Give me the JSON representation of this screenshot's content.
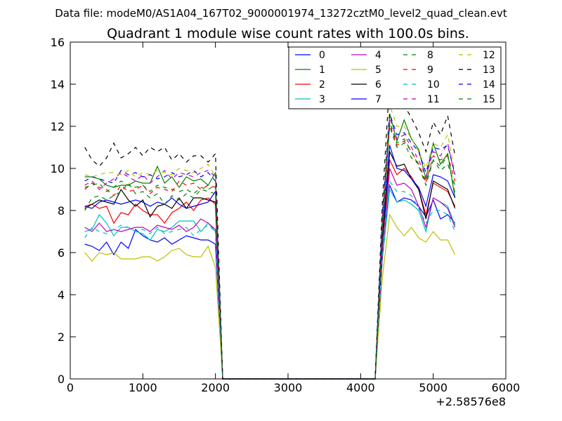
{
  "header": {
    "data_file_label": "Data file: modeM0/AS1A04_167T02_9000001974_13272cztM0_level2_quad_clean.evt"
  },
  "chart_data": {
    "type": "line",
    "title": "Quadrant 1 module wise count rates with 100.0s bins.",
    "xlabel": "",
    "ylabel": "",
    "x_offset_label": "+2.58576e8",
    "xlim": [
      0,
      6000
    ],
    "ylim": [
      0,
      16
    ],
    "x_ticks": [
      0,
      1000,
      2000,
      3000,
      4000,
      5000,
      6000
    ],
    "y_ticks": [
      0,
      2,
      4,
      6,
      8,
      10,
      12,
      14,
      16
    ],
    "grid": false,
    "legend_position": "top-right",
    "x": [
      200,
      300,
      400,
      500,
      600,
      700,
      800,
      900,
      1000,
      1100,
      1200,
      1300,
      1400,
      1500,
      1600,
      1700,
      1800,
      1900,
      2000,
      2100,
      2200,
      2300,
      2400,
      2500,
      2600,
      2700,
      2800,
      2900,
      3000,
      3100,
      3200,
      3300,
      3400,
      3500,
      3600,
      3700,
      3800,
      3900,
      4000,
      4100,
      4200,
      4300,
      4400,
      4500,
      4600,
      4700,
      4800,
      4900,
      5000,
      5100,
      5200,
      5300
    ],
    "series": [
      {
        "name": "0",
        "color": "#0000ff",
        "dash": "solid",
        "values": [
          6.4,
          6.3,
          6.1,
          6.5,
          5.9,
          6.5,
          6.2,
          7.1,
          6.8,
          6.6,
          6.5,
          6.7,
          6.4,
          6.6,
          6.8,
          6.7,
          6.6,
          6.6,
          6.4,
          0,
          0,
          0,
          0,
          0,
          0,
          0,
          0,
          0,
          0,
          0,
          0,
          0,
          0,
          0,
          0,
          0,
          0,
          0,
          0,
          0,
          0,
          5.8,
          9.2,
          8.4,
          8.6,
          8.5,
          8.2,
          7.7,
          8.5,
          7.6,
          7.8,
          7.4
        ]
      },
      {
        "name": "1",
        "color": "#008000",
        "dash": "solid",
        "values": [
          9.6,
          9.6,
          9.5,
          9.2,
          9.1,
          9.2,
          9.2,
          9.4,
          9.3,
          9.3,
          10.1,
          9.3,
          9.6,
          9.1,
          9.6,
          9.4,
          9.5,
          9.2,
          9.8,
          0,
          0,
          0,
          0,
          0,
          0,
          0,
          0,
          0,
          0,
          0,
          0,
          0,
          0,
          0,
          0,
          0,
          0,
          0,
          0,
          0,
          0,
          7.5,
          12.6,
          11.3,
          12.3,
          11.4,
          10.9,
          9.5,
          11.2,
          10.2,
          10.7,
          8.6
        ]
      },
      {
        "name": "2",
        "color": "#ff0000",
        "dash": "solid",
        "values": [
          8.2,
          8.3,
          8.1,
          8.2,
          7.4,
          7.9,
          7.8,
          8.3,
          8.0,
          7.8,
          7.8,
          7.4,
          7.9,
          8.1,
          8.4,
          8.0,
          8.5,
          8.6,
          8.3,
          0,
          0,
          0,
          0,
          0,
          0,
          0,
          0,
          0,
          0,
          0,
          0,
          0,
          0,
          0,
          0,
          0,
          0,
          0,
          0,
          0,
          0,
          6.4,
          10.4,
          9.7,
          10.0,
          9.6,
          9.0,
          7.8,
          9.3,
          9.1,
          8.9,
          8.2
        ]
      },
      {
        "name": "3",
        "color": "#00bfbf",
        "dash": "solid",
        "values": [
          7.0,
          7.1,
          7.8,
          7.4,
          6.8,
          7.2,
          7.2,
          7.0,
          6.9,
          6.6,
          7.1,
          7.0,
          7.2,
          7.5,
          7.5,
          7.5,
          7.0,
          7.4,
          7.0,
          0,
          0,
          0,
          0,
          0,
          0,
          0,
          0,
          0,
          0,
          0,
          0,
          0,
          0,
          0,
          0,
          0,
          0,
          0,
          0,
          0,
          0,
          5.7,
          9.0,
          8.4,
          8.5,
          8.3,
          8.0,
          7.0,
          8.6,
          8.4,
          8.2,
          7.3
        ]
      },
      {
        "name": "4",
        "color": "#bf00bf",
        "dash": "solid",
        "values": [
          7.2,
          7.0,
          7.4,
          7.0,
          7.1,
          7.0,
          7.1,
          7.2,
          7.2,
          7.0,
          7.3,
          7.2,
          7.1,
          7.3,
          7.0,
          7.2,
          7.6,
          7.4,
          7.1,
          0,
          0,
          0,
          0,
          0,
          0,
          0,
          0,
          0,
          0,
          0,
          0,
          0,
          0,
          0,
          0,
          0,
          0,
          0,
          0,
          0,
          0,
          5.8,
          10.0,
          9.2,
          9.3,
          9.0,
          8.2,
          7.2,
          8.6,
          8.4,
          8.1,
          7.2
        ]
      },
      {
        "name": "5",
        "color": "#bfbf00",
        "dash": "solid",
        "values": [
          6.0,
          5.6,
          6.0,
          5.9,
          6.0,
          5.7,
          5.7,
          5.7,
          5.8,
          5.8,
          5.6,
          5.8,
          6.1,
          6.2,
          5.9,
          5.8,
          5.8,
          6.3,
          5.3,
          0,
          0,
          0,
          0,
          0,
          0,
          0,
          0,
          0,
          0,
          0,
          0,
          0,
          0,
          0,
          0,
          0,
          0,
          0,
          0,
          0,
          0,
          4.8,
          7.8,
          7.2,
          6.8,
          7.2,
          6.7,
          6.5,
          7.0,
          6.6,
          6.6,
          5.9
        ]
      },
      {
        "name": "6",
        "color": "#000000",
        "dash": "solid",
        "values": [
          8.1,
          8.3,
          8.5,
          8.4,
          8.3,
          9.0,
          8.5,
          8.2,
          8.5,
          7.7,
          8.2,
          8.3,
          8.1,
          8.6,
          8.1,
          8.6,
          8.6,
          8.5,
          8.4,
          0,
          0,
          0,
          0,
          0,
          0,
          0,
          0,
          0,
          0,
          0,
          0,
          0,
          0,
          0,
          0,
          0,
          0,
          0,
          0,
          0,
          0,
          6.5,
          10.8,
          10.1,
          10.2,
          9.5,
          9.0,
          7.6,
          9.4,
          9.2,
          9.0,
          8.1
        ]
      },
      {
        "name": "7",
        "color": "#0000ff",
        "dash": "solid",
        "values": [
          8.2,
          8.1,
          8.4,
          8.5,
          8.4,
          8.3,
          8.4,
          8.5,
          8.4,
          8.2,
          8.4,
          8.3,
          8.6,
          8.3,
          8.1,
          8.2,
          8.3,
          8.4,
          8.9,
          0,
          0,
          0,
          0,
          0,
          0,
          0,
          0,
          0,
          0,
          0,
          0,
          0,
          0,
          0,
          0,
          0,
          0,
          0,
          0,
          0,
          0,
          6.8,
          11.1,
          10.0,
          9.9,
          9.5,
          9.1,
          8.2,
          9.7,
          9.6,
          9.4,
          8.6
        ]
      },
      {
        "name": "8",
        "color": "#008000",
        "dash": "dashed",
        "values": [
          8.0,
          8.6,
          8.7,
          8.5,
          8.7,
          8.9,
          9.3,
          8.8,
          8.9,
          8.6,
          8.8,
          8.3,
          8.7,
          8.5,
          8.8,
          8.6,
          9.0,
          8.9,
          8.8,
          0,
          0,
          0,
          0,
          0,
          0,
          0,
          0,
          0,
          0,
          0,
          0,
          0,
          0,
          0,
          0,
          0,
          0,
          0,
          0,
          0,
          0,
          7.0,
          12.0,
          11.0,
          11.2,
          10.5,
          10.2,
          9.4,
          10.4,
          9.9,
          10.2,
          9.2
        ]
      },
      {
        "name": "9",
        "color": "#ff0000",
        "dash": "dashed",
        "values": [
          9.0,
          9.3,
          9.1,
          9.0,
          8.7,
          9.2,
          8.9,
          9.0,
          9.2,
          8.8,
          9.1,
          9.0,
          8.9,
          9.4,
          9.2,
          9.3,
          9.0,
          9.2,
          9.1,
          0,
          0,
          0,
          0,
          0,
          0,
          0,
          0,
          0,
          0,
          0,
          0,
          0,
          0,
          0,
          0,
          0,
          0,
          0,
          0,
          0,
          0,
          7.2,
          12.1,
          11.1,
          11.3,
          10.8,
          10.2,
          9.3,
          10.6,
          10.4,
          10.6,
          9.4
        ]
      },
      {
        "name": "10",
        "color": "#00bfbf",
        "dash": "dashed",
        "values": [
          6.7,
          7.2,
          7.0,
          6.9,
          7.1,
          7.3,
          7.2,
          7.0,
          7.1,
          6.9,
          7.2,
          6.9,
          7.0,
          7.1,
          7.2,
          6.8,
          7.1,
          7.3,
          7.0,
          0,
          0,
          0,
          0,
          0,
          0,
          0,
          0,
          0,
          0,
          0,
          0,
          0,
          0,
          0,
          0,
          0,
          0,
          0,
          0,
          0,
          0,
          5.9,
          9.4,
          8.9,
          8.9,
          8.7,
          8.1,
          7.4,
          8.0,
          8.0,
          7.8,
          7.0
        ]
      },
      {
        "name": "11",
        "color": "#bf00bf",
        "dash": "dashed",
        "values": [
          9.2,
          9.4,
          9.0,
          9.3,
          9.5,
          9.8,
          9.6,
          9.4,
          9.7,
          9.3,
          9.6,
          9.9,
          9.5,
          9.8,
          9.7,
          9.6,
          9.8,
          9.9,
          9.6,
          0,
          0,
          0,
          0,
          0,
          0,
          0,
          0,
          0,
          0,
          0,
          0,
          0,
          0,
          0,
          0,
          0,
          0,
          0,
          0,
          0,
          0,
          7.6,
          12.4,
          11.4,
          11.6,
          11.0,
          10.4,
          9.6,
          10.8,
          10.6,
          11.2,
          9.6
        ]
      },
      {
        "name": "12",
        "color": "#bfbf00",
        "dash": "dashed",
        "values": [
          9.7,
          9.6,
          9.7,
          9.8,
          9.8,
          9.7,
          9.9,
          9.6,
          9.8,
          9.7,
          9.9,
          9.8,
          9.7,
          10.0,
          9.9,
          9.8,
          10.0,
          10.2,
          9.6,
          0,
          0,
          0,
          0,
          0,
          0,
          0,
          0,
          0,
          0,
          0,
          0,
          0,
          0,
          0,
          0,
          0,
          0,
          0,
          0,
          0,
          0,
          7.9,
          13.0,
          12.0,
          12.0,
          11.4,
          10.8,
          10.0,
          11.2,
          11.0,
          11.6,
          9.8
        ]
      },
      {
        "name": "13",
        "color": "#000000",
        "dash": "dashed",
        "values": [
          11.0,
          10.4,
          10.1,
          10.5,
          11.2,
          10.5,
          10.7,
          11.0,
          10.6,
          11.0,
          10.8,
          11.0,
          10.4,
          10.7,
          10.3,
          10.6,
          10.6,
          10.3,
          10.7,
          0,
          0,
          0,
          0,
          0,
          0,
          0,
          0,
          0,
          0,
          0,
          0,
          0,
          0,
          0,
          0,
          0,
          0,
          0,
          0,
          0,
          0,
          8.4,
          14.2,
          12.9,
          13.0,
          12.4,
          11.7,
          10.8,
          12.2,
          11.6,
          12.5,
          10.6
        ]
      },
      {
        "name": "14",
        "color": "#0000ff",
        "dash": "dashed",
        "values": [
          9.4,
          9.6,
          9.5,
          9.4,
          9.3,
          9.9,
          9.7,
          9.8,
          9.6,
          9.7,
          9.5,
          9.6,
          9.8,
          9.6,
          9.7,
          9.9,
          9.6,
          9.8,
          9.4,
          0,
          0,
          0,
          0,
          0,
          0,
          0,
          0,
          0,
          0,
          0,
          0,
          0,
          0,
          0,
          0,
          0,
          0,
          0,
          0,
          0,
          0,
          7.8,
          12.6,
          11.6,
          11.7,
          11.2,
          10.8,
          9.8,
          11.0,
          10.9,
          11.1,
          9.7
        ]
      },
      {
        "name": "15",
        "color": "#008000",
        "dash": "dashed",
        "values": [
          9.1,
          9.2,
          9.3,
          8.9,
          9.1,
          9.4,
          9.2,
          9.1,
          9.2,
          8.9,
          9.2,
          9.1,
          9.0,
          8.9,
          9.0,
          8.8,
          9.1,
          9.0,
          9.2,
          0,
          0,
          0,
          0,
          0,
          0,
          0,
          0,
          0,
          0,
          0,
          0,
          0,
          0,
          0,
          0,
          0,
          0,
          0,
          0,
          0,
          0,
          7.4,
          12.2,
          11.2,
          11.4,
          10.8,
          10.1,
          9.2,
          10.4,
          10.1,
          10.6,
          8.8
        ]
      }
    ]
  }
}
